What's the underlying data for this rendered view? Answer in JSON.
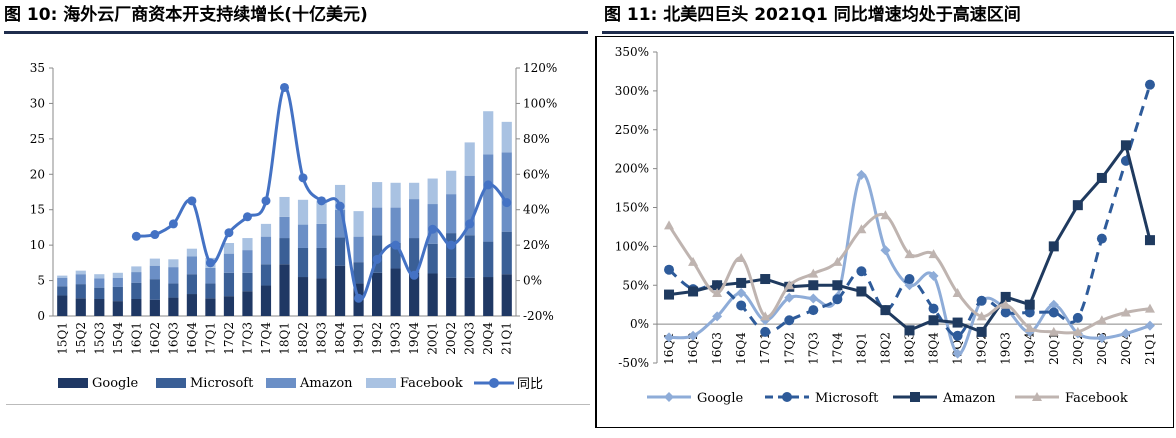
{
  "figures": {
    "left_title": "图 10: 海外云厂商资本开支持续增长(十亿美元)",
    "right_title": "图 11: 北美四巨头 2021Q1 同比增速均处于高速区间"
  },
  "colors": {
    "google_bar": "#1f3864",
    "microsoft_bar": "#3a5f96",
    "amazon_bar": "#6b8fc6",
    "facebook_bar": "#a9c2e2",
    "yoy_line": "#4472c4",
    "google_line": "#8eacd8",
    "microsoft_line": "#2e5b9a",
    "amazon_line": "#1f3a5f",
    "facebook_line": "#bfb4b0"
  },
  "chart_data": [
    {
      "type": "bar",
      "stacked": true,
      "title": "海外云厂商资本开支持续增长(十亿美元)",
      "categories": [
        "15Q1",
        "15Q2",
        "15Q3",
        "15Q4",
        "16Q1",
        "16Q2",
        "16Q3",
        "16Q4",
        "17Q1",
        "17Q2",
        "17Q3",
        "17Q4",
        "18Q1",
        "18Q2",
        "18Q3",
        "18Q4",
        "19Q1",
        "19Q2",
        "19Q3",
        "19Q4",
        "20Q1",
        "20Q2",
        "20Q3",
        "20Q4",
        "21Q1"
      ],
      "series": [
        {
          "name": "Google",
          "values": [
            2.9,
            2.5,
            2.4,
            2.1,
            2.4,
            2.3,
            2.6,
            3.1,
            2.5,
            2.8,
            3.5,
            4.3,
            7.3,
            5.5,
            5.3,
            7.1,
            4.6,
            6.1,
            6.7,
            6.1,
            6.0,
            5.4,
            5.4,
            5.5,
            5.9
          ]
        },
        {
          "name": "Microsoft",
          "values": [
            1.3,
            2.0,
            1.6,
            2.0,
            2.3,
            2.9,
            2.0,
            2.8,
            2.1,
            3.3,
            2.6,
            3.0,
            3.7,
            4.1,
            4.3,
            4.0,
            3.0,
            5.3,
            3.6,
            4.9,
            4.2,
            6.3,
            6.0,
            5.0,
            6.0
          ]
        },
        {
          "name": "Amazon",
          "values": [
            1.2,
            1.4,
            1.3,
            1.3,
            1.5,
            1.9,
            2.3,
            2.5,
            2.2,
            2.7,
            3.2,
            3.9,
            3.0,
            3.3,
            3.4,
            3.9,
            3.6,
            3.9,
            5.0,
            5.5,
            5.6,
            5.5,
            8.4,
            12.3,
            11.2
          ]
        },
        {
          "name": "Facebook",
          "values": [
            0.3,
            0.5,
            0.6,
            0.7,
            0.8,
            1.0,
            1.1,
            1.1,
            1.4,
            1.5,
            1.7,
            1.8,
            2.8,
            3.5,
            3.3,
            3.5,
            3.6,
            3.6,
            3.5,
            2.3,
            3.6,
            3.3,
            4.7,
            6.1,
            4.3
          ]
        }
      ],
      "line": {
        "name": "同比",
        "start_index": 4,
        "values": [
          25,
          26,
          32,
          45,
          10,
          27,
          36,
          45,
          109,
          58,
          45,
          42,
          -10,
          12,
          20,
          3,
          29,
          20,
          32,
          54,
          44
        ]
      },
      "ylim": [
        0,
        35
      ],
      "y2lim": [
        -20,
        120
      ],
      "y_ticks": [
        "0",
        "5",
        "10",
        "15",
        "20",
        "25",
        "30",
        "35"
      ],
      "y2_ticks": [
        "-20%",
        "0%",
        "20%",
        "40%",
        "60%",
        "80%",
        "100%",
        "120%"
      ],
      "legend": [
        "Google",
        "Microsoft",
        "Amazon",
        "Facebook",
        "同比"
      ]
    },
    {
      "type": "line",
      "title": "北美四巨头 2021Q1 同比增速均处于高速区间",
      "categories": [
        "16Q1",
        "16Q2",
        "16Q3",
        "16Q4",
        "17Q1",
        "17Q2",
        "17Q3",
        "17Q4",
        "18Q1",
        "18Q2",
        "18Q3",
        "18Q4",
        "19Q1",
        "19Q2",
        "19Q3",
        "19Q4",
        "20Q1",
        "20Q2",
        "20Q3",
        "20Q4",
        "21Q1"
      ],
      "series": [
        {
          "name": "Google",
          "values": [
            -17,
            -15,
            10,
            40,
            5,
            34,
            33,
            35,
            192,
            95,
            50,
            62,
            -38,
            30,
            20,
            -10,
            25,
            -12,
            -18,
            -12,
            -2
          ]
        },
        {
          "name": "Microsoft",
          "values": [
            70,
            45,
            50,
            24,
            -10,
            5,
            18,
            32,
            68,
            18,
            58,
            20,
            -15,
            30,
            15,
            15,
            15,
            8,
            110,
            210,
            308
          ]
        },
        {
          "name": "Amazon",
          "values": [
            38,
            42,
            50,
            53,
            58,
            48,
            50,
            50,
            42,
            18,
            -8,
            5,
            2,
            -10,
            35,
            25,
            100,
            153,
            188,
            230,
            108
          ]
        },
        {
          "name": "Facebook",
          "values": [
            127,
            80,
            40,
            85,
            10,
            50,
            65,
            80,
            122,
            140,
            90,
            90,
            40,
            10,
            25,
            -5,
            -10,
            -10,
            5,
            15,
            20
          ]
        }
      ],
      "ylim": [
        -50,
        350
      ],
      "y_ticks": [
        "-50%",
        "0%",
        "50%",
        "100%",
        "150%",
        "200%",
        "250%",
        "300%",
        "350%"
      ],
      "legend": [
        "Google",
        "Microsoft",
        "Amazon",
        "Facebook"
      ]
    }
  ]
}
